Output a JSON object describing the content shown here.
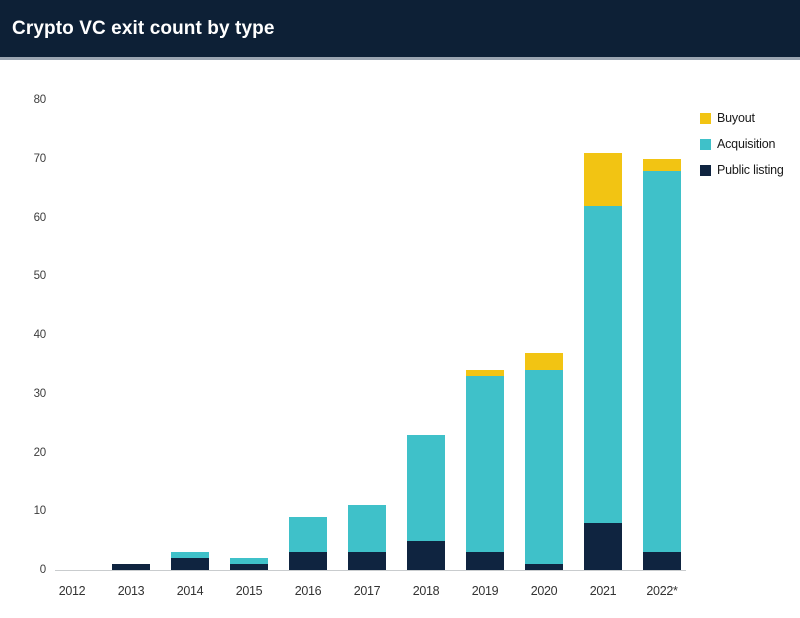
{
  "header": {
    "title": "Crypto VC exit count by type"
  },
  "chart_data": {
    "type": "bar",
    "stacked": true,
    "title": "Crypto VC exit count by type",
    "categories": [
      "2012",
      "2013",
      "2014",
      "2015",
      "2016",
      "2017",
      "2018",
      "2019",
      "2020",
      "2021",
      "2022*"
    ],
    "series": [
      {
        "name": "Public listing",
        "color": "#0f2440",
        "values": [
          0,
          1,
          2,
          1,
          3,
          3,
          5,
          3,
          1,
          8,
          3
        ]
      },
      {
        "name": "Acquisition",
        "color": "#3fc1c9",
        "values": [
          0,
          0,
          1,
          1,
          6,
          8,
          18,
          30,
          33,
          54,
          65
        ]
      },
      {
        "name": "Buyout",
        "color": "#f2c413",
        "values": [
          0,
          0,
          0,
          0,
          0,
          0,
          0,
          1,
          3,
          9,
          2
        ]
      }
    ],
    "totals": [
      0,
      1,
      3,
      2,
      9,
      11,
      23,
      34,
      37,
      71,
      70
    ],
    "xlabel": "",
    "ylabel": "",
    "ylim": [
      0,
      80
    ],
    "yticks": [
      0,
      10,
      20,
      30,
      40,
      50,
      60,
      70,
      80
    ],
    "grid": false,
    "legend_position": "top-right",
    "legend_order": [
      "Buyout",
      "Acquisition",
      "Public listing"
    ]
  },
  "colors": {
    "header_bg": "#0d2036",
    "header_border": "#9aa5b1",
    "axis_line": "#c9ccce",
    "tick_text": "#3c3c3c",
    "title_text": "#ffffff",
    "background": "#ffffff"
  }
}
